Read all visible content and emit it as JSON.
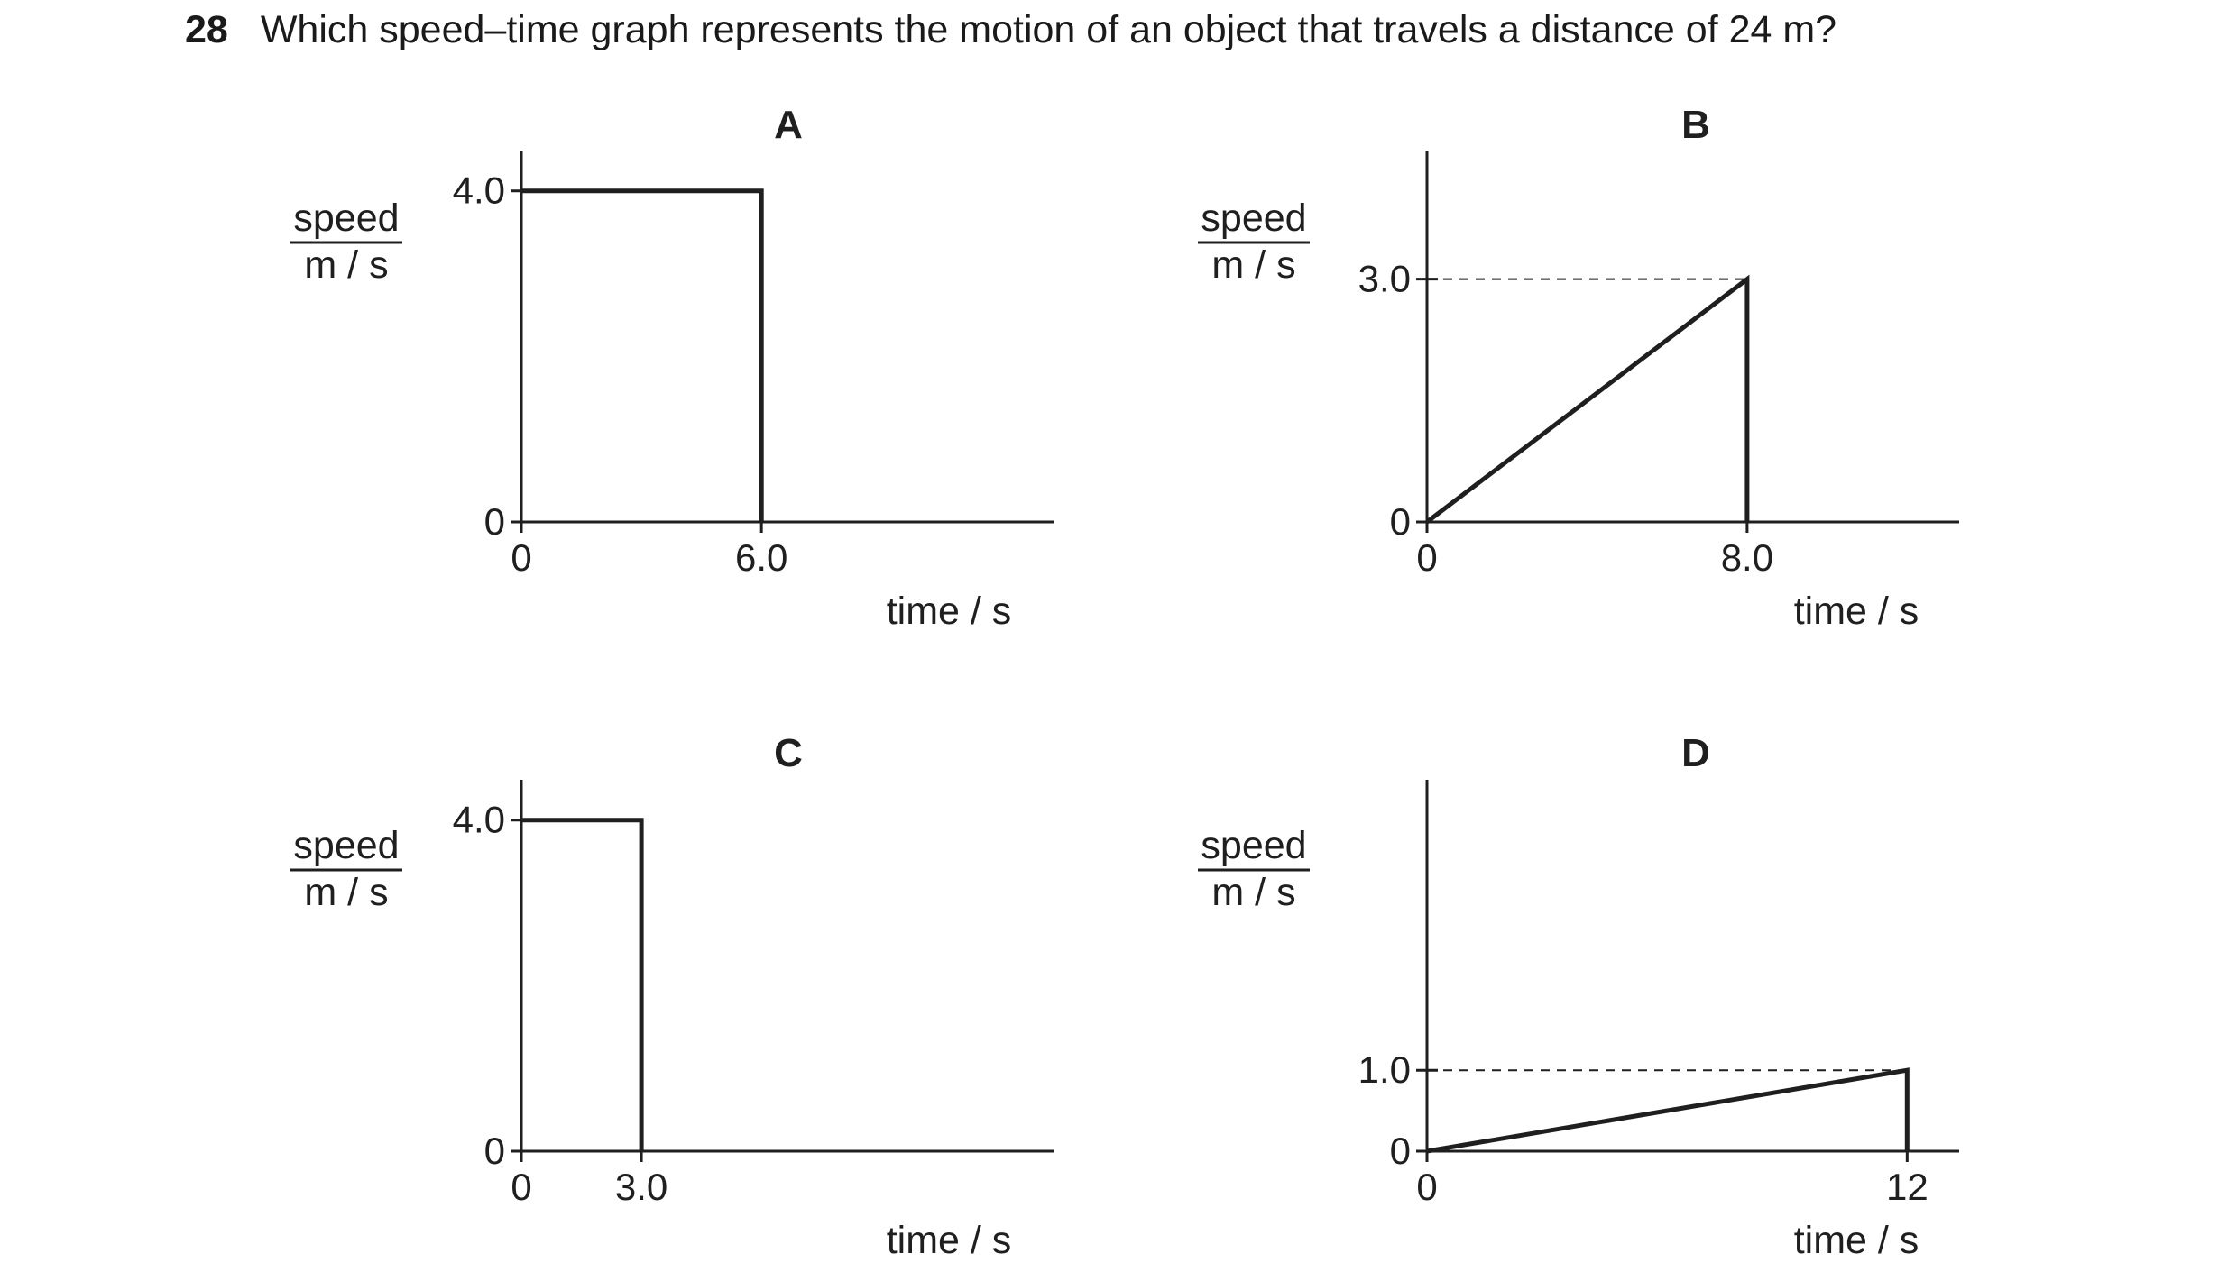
{
  "question": {
    "number": "28",
    "text": "Which speed–time graph represents the motion of an object that travels a distance of 24 m?"
  },
  "chart_data": [
    {
      "type": "line",
      "panel": "A",
      "xlabel": "time / s",
      "ylabel_top": "speed",
      "ylabel_bottom": "m / s",
      "x_ticks": [
        "0",
        "6.0"
      ],
      "y_ticks": [
        "0",
        "4.0"
      ],
      "xlim": [
        0,
        13.3
      ],
      "ylim": [
        0,
        4.4
      ],
      "series": [
        {
          "x": [
            0,
            6.0,
            6.0
          ],
          "y": [
            4.0,
            4.0,
            0
          ]
        }
      ],
      "dashed_guides": []
    },
    {
      "type": "line",
      "panel": "B",
      "xlabel": "time / s",
      "ylabel_top": "speed",
      "ylabel_bottom": "m / s",
      "x_ticks": [
        "0",
        "8.0"
      ],
      "y_ticks": [
        "0",
        "3.0"
      ],
      "xlim": [
        0,
        13.3
      ],
      "ylim": [
        0,
        4.5
      ],
      "series": [
        {
          "x": [
            0,
            8.0,
            8.0
          ],
          "y": [
            0,
            3.0,
            0
          ]
        }
      ],
      "dashed_guides": [
        {
          "y": 3.0,
          "x_from": 0,
          "x_to": 8.0
        }
      ]
    },
    {
      "type": "line",
      "panel": "C",
      "xlabel": "time / s",
      "ylabel_top": "speed",
      "ylabel_bottom": "m / s",
      "x_ticks": [
        "0",
        "3.0"
      ],
      "y_ticks": [
        "0",
        "4.0"
      ],
      "xlim": [
        0,
        13.3
      ],
      "ylim": [
        0,
        4.4
      ],
      "series": [
        {
          "x": [
            0,
            3.0,
            3.0
          ],
          "y": [
            4.0,
            4.0,
            0
          ]
        }
      ],
      "dashed_guides": []
    },
    {
      "type": "line",
      "panel": "D",
      "xlabel": "time / s",
      "ylabel_top": "speed",
      "ylabel_bottom": "m / s",
      "x_ticks": [
        "0",
        "12"
      ],
      "y_ticks": [
        "0",
        "1.0"
      ],
      "xlim": [
        0,
        13.3
      ],
      "ylim": [
        0,
        4.5
      ],
      "series": [
        {
          "x": [
            0,
            12,
            12
          ],
          "y": [
            0,
            1.0,
            0
          ]
        }
      ],
      "dashed_guides": [
        {
          "y": 1.0,
          "x_from": 0,
          "x_to": 12
        }
      ]
    }
  ]
}
